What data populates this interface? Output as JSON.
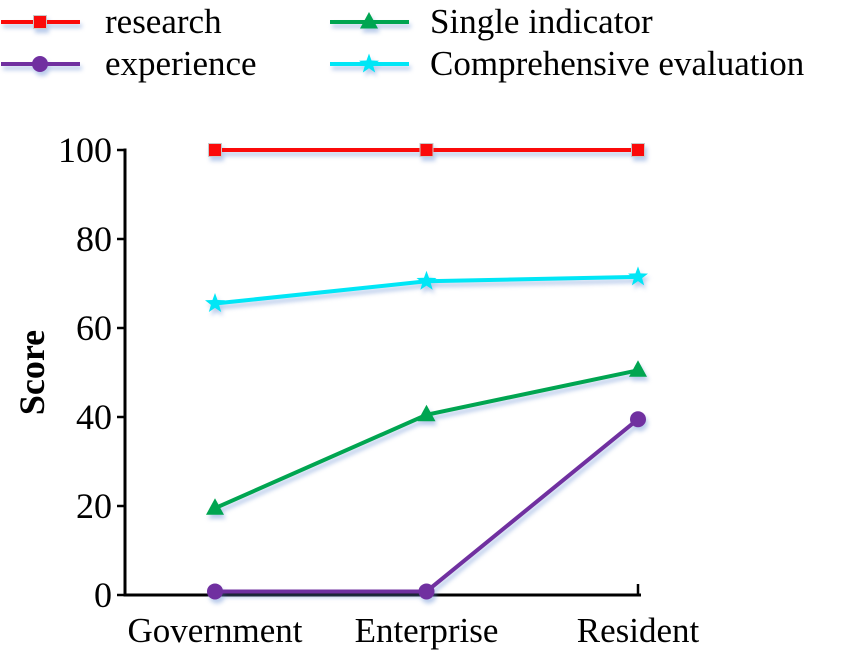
{
  "figure": {
    "background": "#ffffff",
    "text_color": "#000000",
    "axis_color": "#000000"
  },
  "chart_data": {
    "type": "line",
    "categories": [
      "Government",
      "Enterprise",
      "Resident"
    ],
    "series": [
      {
        "name": "research",
        "values": [
          100,
          100,
          100
        ],
        "color": "#fb0a0a",
        "marker": "square",
        "marker_edge": "#c9c9c9"
      },
      {
        "name": "experience",
        "values": [
          0.8,
          0.8,
          39.5
        ],
        "color": "#7030a0",
        "marker": "circle",
        "marker_edge": "none"
      },
      {
        "name": "Single indicator",
        "values": [
          19.5,
          40.5,
          50.5
        ],
        "color": "#00a551",
        "marker": "triangle",
        "marker_edge": "none"
      },
      {
        "name": "Comprehensive evaluation",
        "values": [
          65.5,
          70.5,
          71.5
        ],
        "color": "#00e6f6",
        "marker": "star",
        "marker_edge": "none"
      }
    ],
    "title": "",
    "xlabel": "",
    "ylabel": "Score",
    "ylim": [
      0,
      100
    ],
    "yticks": [
      0,
      20,
      40,
      60,
      80,
      100
    ],
    "grid": false,
    "legend_position": "top",
    "legend_columns": 2
  }
}
